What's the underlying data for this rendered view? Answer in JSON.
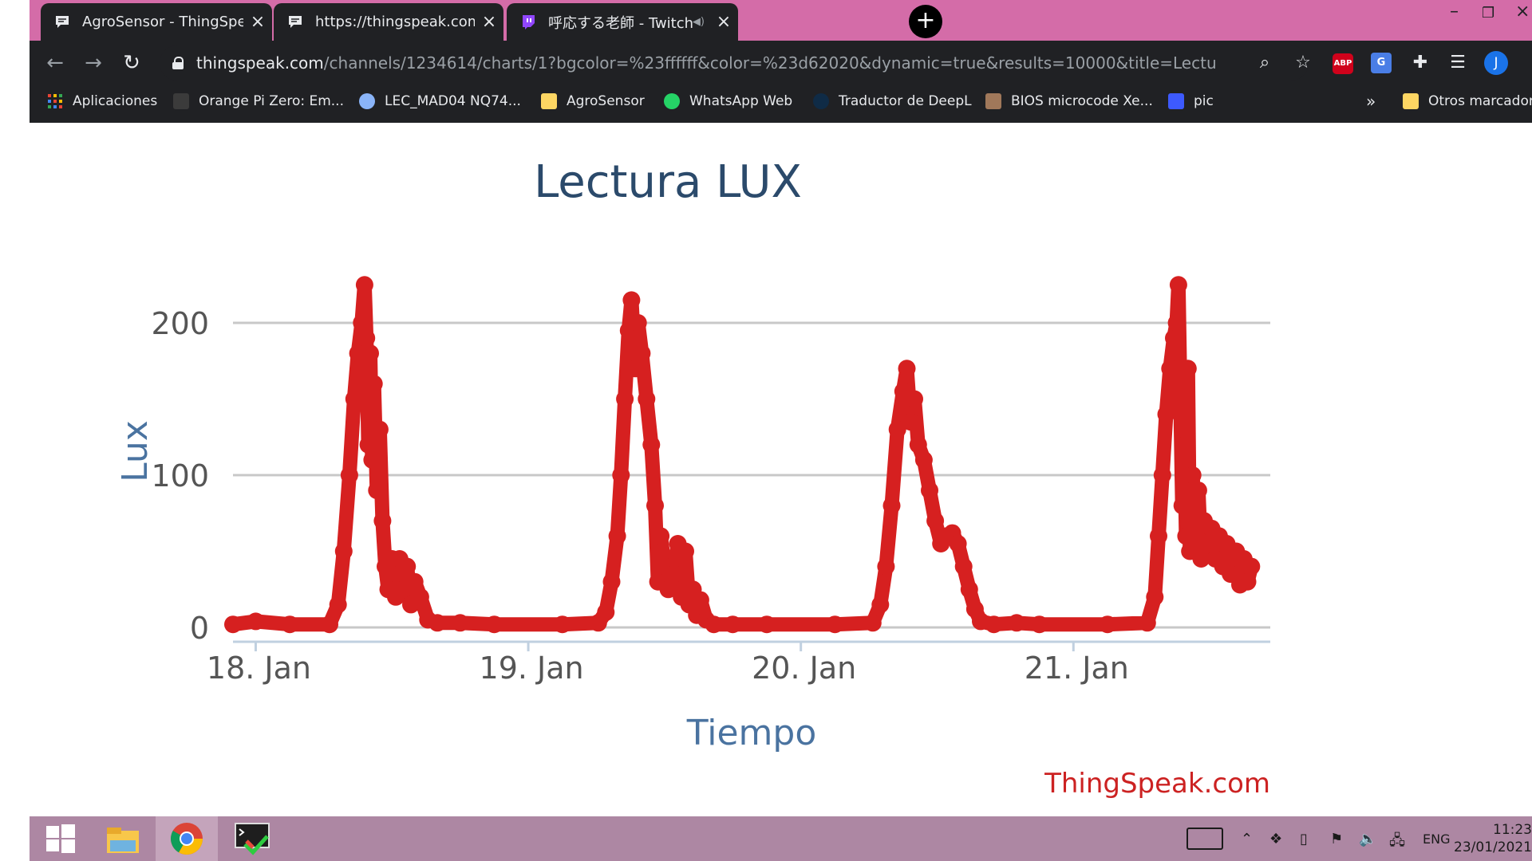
{
  "browser": {
    "tabs": [
      {
        "title": "AgroSensor - ThingSpeak IoT",
        "icon": "chat-bubble-icon"
      },
      {
        "title": "https://thingspeak.com/channels",
        "icon": "chat-bubble-icon"
      },
      {
        "title": "呼応する老師 - Twitch",
        "icon": "twitch-icon"
      }
    ],
    "url": {
      "host": "thingspeak.com",
      "path": "/channels/1234614/charts/1?bgcolor=%23ffffff&color=%23d62020&dynamic=true&results=10000&title=Lectura+LUX&t..."
    },
    "profile_initial": "J",
    "abp_label": "ABP",
    "bookmarks": [
      {
        "label": "Aplicaciones",
        "icon": "apps-grid-icon"
      },
      {
        "label": "Orange Pi Zero: Em...",
        "icon": "orange-pi-icon"
      },
      {
        "label": "LEC_MAD04 NQ74...",
        "icon": "lock-badge-icon"
      },
      {
        "label": "AgroSensor",
        "icon": "folder-icon"
      },
      {
        "label": "WhatsApp Web",
        "icon": "whatsapp-icon"
      },
      {
        "label": "Traductor de DeepL",
        "icon": "deepl-icon"
      },
      {
        "label": "BIOS microcode Xe...",
        "icon": "chip-icon"
      },
      {
        "label": "pic",
        "icon": "pic-icon"
      }
    ],
    "bookmarks_overflow": "»",
    "other_bookmarks": "Otros marcadores"
  },
  "chart_data": {
    "type": "line",
    "title": "Lectura LUX",
    "xlabel": "Tiempo",
    "ylabel": "Lux",
    "ylim": [
      0,
      230
    ],
    "yticks": [
      0,
      100,
      200
    ],
    "xticks": [
      "18. Jan",
      "19. Jan",
      "20. Jan",
      "21. Jan"
    ],
    "xlim": [
      "2021-01-17 22:00",
      "2021-01-21 17:20"
    ],
    "grid": true,
    "color": "#d62020",
    "credits": "ThingSpeak.com",
    "series": [
      {
        "points": [
          [
            "2021-01-17 22:00",
            2
          ],
          [
            "2021-01-18 00:00",
            4
          ],
          [
            "2021-01-18 03:00",
            2
          ],
          [
            "2021-01-18 06:30",
            2
          ],
          [
            "2021-01-18 07:15",
            15
          ],
          [
            "2021-01-18 07:45",
            50
          ],
          [
            "2021-01-18 08:15",
            100
          ],
          [
            "2021-01-18 08:40",
            150
          ],
          [
            "2021-01-18 09:00",
            180
          ],
          [
            "2021-01-18 09:20",
            200
          ],
          [
            "2021-01-18 09:35",
            225
          ],
          [
            "2021-01-18 09:45",
            190
          ],
          [
            "2021-01-18 09:55",
            120
          ],
          [
            "2021-01-18 10:05",
            180
          ],
          [
            "2021-01-18 10:15",
            110
          ],
          [
            "2021-01-18 10:25",
            160
          ],
          [
            "2021-01-18 10:40",
            90
          ],
          [
            "2021-01-18 10:55",
            130
          ],
          [
            "2021-01-18 11:10",
            70
          ],
          [
            "2021-01-18 11:25",
            40
          ],
          [
            "2021-01-18 11:40",
            25
          ],
          [
            "2021-01-18 12:00",
            45
          ],
          [
            "2021-01-18 12:20",
            20
          ],
          [
            "2021-01-18 12:40",
            45
          ],
          [
            "2021-01-18 13:00",
            25
          ],
          [
            "2021-01-18 13:20",
            40
          ],
          [
            "2021-01-18 13:40",
            15
          ],
          [
            "2021-01-18 14:00",
            30
          ],
          [
            "2021-01-18 14:30",
            20
          ],
          [
            "2021-01-18 15:10",
            5
          ],
          [
            "2021-01-18 16:00",
            3
          ],
          [
            "2021-01-18 18:00",
            3
          ],
          [
            "2021-01-18 21:00",
            2
          ],
          [
            "2021-01-19 03:00",
            2
          ],
          [
            "2021-01-19 06:10",
            3
          ],
          [
            "2021-01-19 06:50",
            10
          ],
          [
            "2021-01-19 07:20",
            30
          ],
          [
            "2021-01-19 07:50",
            60
          ],
          [
            "2021-01-19 08:10",
            100
          ],
          [
            "2021-01-19 08:30",
            150
          ],
          [
            "2021-01-19 08:50",
            195
          ],
          [
            "2021-01-19 09:05",
            215
          ],
          [
            "2021-01-19 09:25",
            170
          ],
          [
            "2021-01-19 09:40",
            200
          ],
          [
            "2021-01-19 10:00",
            180
          ],
          [
            "2021-01-19 10:25",
            150
          ],
          [
            "2021-01-19 10:50",
            120
          ],
          [
            "2021-01-19 11:10",
            80
          ],
          [
            "2021-01-19 11:25",
            30
          ],
          [
            "2021-01-19 11:40",
            60
          ],
          [
            "2021-01-19 12:00",
            40
          ],
          [
            "2021-01-19 12:20",
            25
          ],
          [
            "2021-01-19 12:50",
            35
          ],
          [
            "2021-01-19 13:10",
            55
          ],
          [
            "2021-01-19 13:30",
            20
          ],
          [
            "2021-01-19 13:50",
            50
          ],
          [
            "2021-01-19 14:10",
            15
          ],
          [
            "2021-01-19 14:30",
            25
          ],
          [
            "2021-01-19 14:50",
            8
          ],
          [
            "2021-01-19 15:10",
            18
          ],
          [
            "2021-01-19 15:40",
            5
          ],
          [
            "2021-01-19 16:20",
            2
          ],
          [
            "2021-01-19 18:00",
            2
          ],
          [
            "2021-01-19 21:00",
            2
          ],
          [
            "2021-01-20 03:00",
            2
          ],
          [
            "2021-01-20 06:20",
            3
          ],
          [
            "2021-01-20 07:00",
            15
          ],
          [
            "2021-01-20 07:30",
            40
          ],
          [
            "2021-01-20 08:00",
            80
          ],
          [
            "2021-01-20 08:30",
            130
          ],
          [
            "2021-01-20 09:00",
            155
          ],
          [
            "2021-01-20 09:20",
            170
          ],
          [
            "2021-01-20 09:40",
            135
          ],
          [
            "2021-01-20 10:00",
            150
          ],
          [
            "2021-01-20 10:20",
            120
          ],
          [
            "2021-01-20 10:50",
            110
          ],
          [
            "2021-01-20 11:20",
            90
          ],
          [
            "2021-01-20 11:50",
            70
          ],
          [
            "2021-01-20 12:20",
            55
          ],
          [
            "2021-01-20 12:50",
            60
          ],
          [
            "2021-01-20 13:20",
            62
          ],
          [
            "2021-01-20 13:50",
            55
          ],
          [
            "2021-01-20 14:20",
            40
          ],
          [
            "2021-01-20 14:50",
            25
          ],
          [
            "2021-01-20 15:20",
            12
          ],
          [
            "2021-01-20 15:50",
            4
          ],
          [
            "2021-01-20 17:00",
            2
          ],
          [
            "2021-01-20 19:00",
            3
          ],
          [
            "2021-01-20 21:00",
            2
          ],
          [
            "2021-01-21 03:00",
            2
          ],
          [
            "2021-01-21 06:30",
            3
          ],
          [
            "2021-01-21 07:10",
            20
          ],
          [
            "2021-01-21 07:30",
            60
          ],
          [
            "2021-01-21 07:50",
            100
          ],
          [
            "2021-01-21 08:10",
            140
          ],
          [
            "2021-01-21 08:30",
            170
          ],
          [
            "2021-01-21 08:50",
            190
          ],
          [
            "2021-01-21 09:05",
            200
          ],
          [
            "2021-01-21 09:15",
            225
          ],
          [
            "2021-01-21 09:25",
            150
          ],
          [
            "2021-01-21 09:35",
            80
          ],
          [
            "2021-01-21 09:45",
            130
          ],
          [
            "2021-01-21 09:55",
            60
          ],
          [
            "2021-01-21 10:05",
            170
          ],
          [
            "2021-01-21 10:15",
            50
          ],
          [
            "2021-01-21 10:30",
            100
          ],
          [
            "2021-01-21 10:45",
            55
          ],
          [
            "2021-01-21 11:00",
            90
          ],
          [
            "2021-01-21 11:15",
            45
          ],
          [
            "2021-01-21 11:30",
            70
          ],
          [
            "2021-01-21 11:50",
            50
          ],
          [
            "2021-01-21 12:10",
            65
          ],
          [
            "2021-01-21 12:30",
            45
          ],
          [
            "2021-01-21 12:50",
            60
          ],
          [
            "2021-01-21 13:10",
            40
          ],
          [
            "2021-01-21 13:30",
            55
          ],
          [
            "2021-01-21 13:50",
            35
          ],
          [
            "2021-01-21 14:20",
            50
          ],
          [
            "2021-01-21 14:40",
            28
          ],
          [
            "2021-01-21 15:00",
            45
          ],
          [
            "2021-01-21 15:20",
            30
          ],
          [
            "2021-01-21 15:40",
            40
          ]
        ]
      }
    ]
  },
  "taskbar": {
    "apps": [
      {
        "name": "start-menu-icon"
      },
      {
        "name": "file-explorer-icon"
      },
      {
        "name": "chrome-icon"
      },
      {
        "name": "terminal-app-icon"
      }
    ],
    "language": "ENG",
    "time": "11:23",
    "date": "23/01/2021"
  }
}
